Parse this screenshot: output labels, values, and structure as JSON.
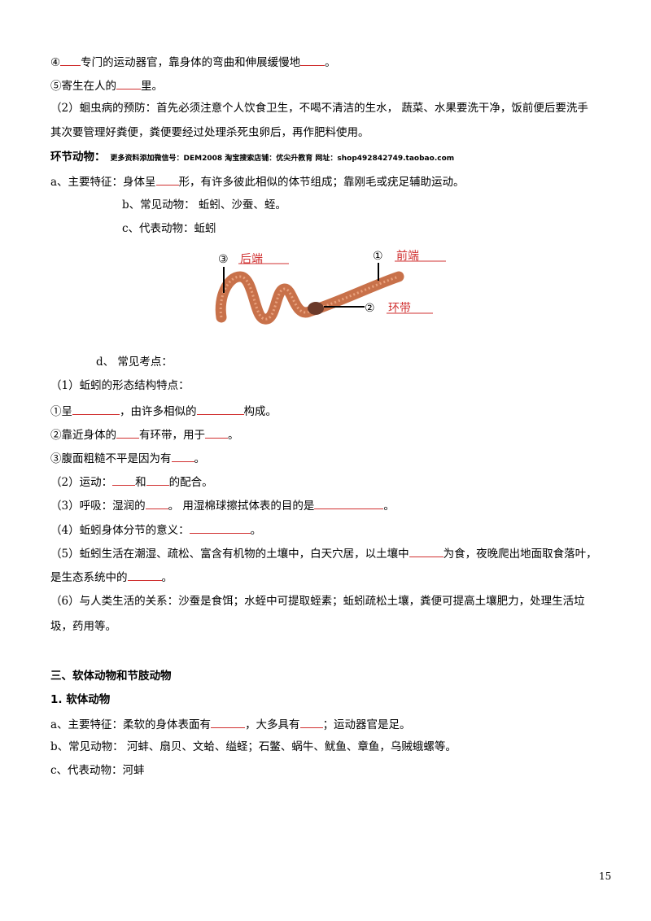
{
  "lines": [
    [
      "④",
      "专门的运动器官，靠身体的弯曲和伸展缓慢地",
      "。"
    ],
    [
      "⑤寄生在人的",
      "里。"
    ],
    [
      "（2）蛔虫病的预防：首先必须注意个人饮食卫生，不喝不清洁的生水， 蔬菜、水果要洗干净，饭前便后要洗手"
    ],
    [
      "其次要管理好粪便，粪便要经过处理杀死虫卵后，再作肥料使用。"
    ],
    [
      "a、主要特征：身体呈",
      "形，有许多彼此相似的体节组成；靠刚毛或疣足辅助运动。"
    ],
    [
      "b、常见动物： 蚯蚓、沙蚕、蛭。"
    ],
    [
      "c、代表动物：蚯蚓"
    ],
    [
      "d、 常见考点："
    ],
    [
      "（1）蚯蚓的形态结构特点："
    ],
    [
      "①呈",
      "，由许多相似的",
      "构成。"
    ],
    [
      "②靠近身体的",
      "有环带，用于",
      "。"
    ],
    [
      "③腹面粗糙不平是因为有",
      "。"
    ],
    [
      "（2）运动：",
      "和",
      "的配合。"
    ],
    [
      "（3）呼吸：湿润的",
      "。 用湿棉球擦拭体表的目的是",
      "。"
    ],
    [
      "（4）蚯蚓身体分节的意义：",
      "。"
    ],
    [
      "（5）蚯蚓生活在潮湿、疏松、富含有机物的土壤中，白天穴居，以土壤中",
      "为食，夜晚爬出地面取食落叶，"
    ],
    [
      "是生态系统中的",
      "。"
    ],
    [
      "（6）与人类生活的关系：沙蚕是食饵；水蛭中可提取蛭素；蚯蚓疏松土壤，粪便可提高土壤肥力，处理生活垃"
    ],
    [
      "圾，药用等。"
    ],
    [
      "a、主要特征：柔软的身体表面有",
      "，大多具有",
      "；运动器官是足。"
    ],
    [
      "b、常见动物： 河蚌、扇贝、文蛤、缢蛏；石鳖、蜗牛、鱿鱼、章鱼，乌贼蛾螺等。"
    ],
    [
      "c、代表动物：河蚌"
    ]
  ],
  "heading": {
    "title": "环节动物：",
    "note": "更多资料添加微信号：DEM2008  淘宝搜索店铺：优尖升教育 网址：shop492842749.taobao.com"
  },
  "figure": {
    "labels": [
      {
        "number": "③",
        "text": "后端"
      },
      {
        "number": "①",
        "text": "前端"
      },
      {
        "number": "②",
        "text": "环带"
      }
    ]
  },
  "section_title": "三、软体动物和节肢动物",
  "subsection_title": "1. 软体动物",
  "page_number": "15"
}
